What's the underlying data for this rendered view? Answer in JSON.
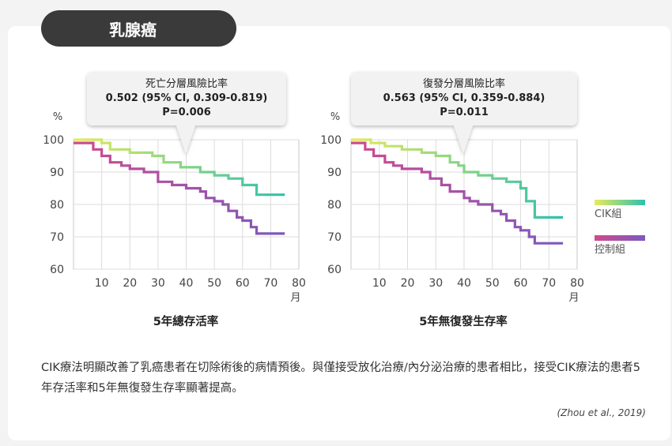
{
  "header": {
    "title": "乳腺癌"
  },
  "legend": [
    {
      "label": "CIK組",
      "colors": [
        "#e6eb5a",
        "#2ec0ae"
      ]
    },
    {
      "label": "控制組",
      "colors": [
        "#d04a8c",
        "#7a5abf"
      ]
    }
  ],
  "chart_data": [
    {
      "type": "line",
      "title": "5年總存活率",
      "callout": [
        "死亡分層風險比率",
        "0.502 (95% CI, 0.309-0.819)",
        "P=0.006"
      ],
      "ylabel": "%",
      "xunit": "月",
      "xlim": [
        0,
        80
      ],
      "ylim": [
        60,
        100
      ],
      "xticks": [
        10,
        20,
        30,
        40,
        50,
        60,
        70,
        80
      ],
      "yticks": [
        100,
        90,
        80,
        70,
        60
      ],
      "grid": true,
      "series": [
        {
          "name": "CIK組",
          "step": true,
          "x": [
            0,
            10,
            13,
            20,
            28,
            32,
            38,
            45,
            50,
            55,
            60,
            65,
            75
          ],
          "y": [
            100,
            99,
            97,
            96,
            95,
            93,
            91.5,
            90,
            89,
            88,
            86,
            83,
            83
          ]
        },
        {
          "name": "控制組",
          "step": true,
          "x": [
            0,
            7,
            10,
            13,
            17,
            20,
            25,
            30,
            35,
            40,
            45,
            47,
            50,
            53,
            55,
            58,
            60,
            63,
            65,
            75
          ],
          "y": [
            99,
            97,
            95,
            93,
            92,
            91,
            90,
            87,
            86,
            85,
            84,
            82,
            81,
            80,
            78,
            76,
            75,
            73,
            71,
            71
          ]
        }
      ]
    },
    {
      "type": "line",
      "title": "5年無復發生存率",
      "callout": [
        "復發分層風險比率",
        "0.563 (95% CI, 0.359-0.884)",
        "P=0.011"
      ],
      "ylabel": "%",
      "xunit": "月",
      "xlim": [
        0,
        80
      ],
      "ylim": [
        60,
        100
      ],
      "xticks": [
        10,
        20,
        30,
        40,
        50,
        60,
        70,
        80
      ],
      "yticks": [
        100,
        90,
        80,
        70,
        60
      ],
      "grid": true,
      "series": [
        {
          "name": "CIK組",
          "step": true,
          "x": [
            0,
            7,
            12,
            18,
            25,
            30,
            35,
            38,
            40,
            45,
            50,
            55,
            60,
            62,
            65,
            75
          ],
          "y": [
            100,
            99,
            98,
            97,
            96,
            95,
            93,
            92,
            90,
            89,
            88,
            87,
            85,
            81,
            76,
            76
          ]
        },
        {
          "name": "控制組",
          "step": true,
          "x": [
            0,
            5,
            8,
            12,
            15,
            18,
            25,
            28,
            32,
            35,
            40,
            42,
            45,
            50,
            53,
            55,
            58,
            60,
            63,
            65,
            75
          ],
          "y": [
            99,
            97,
            95,
            93,
            92,
            91,
            90,
            88,
            86,
            84,
            82,
            81,
            80,
            78,
            77,
            75,
            73,
            72,
            70,
            68,
            68
          ]
        }
      ]
    }
  ],
  "caption": "CIK療法明顯改善了乳癌患者在切除術後的病情預後。與僅接受放化治療/內分泌治療的患者相比，接受CIK療法的患者5年存活率和5年無復發生存率顯著提高。",
  "citation": "(Zhou et al., 2019)"
}
